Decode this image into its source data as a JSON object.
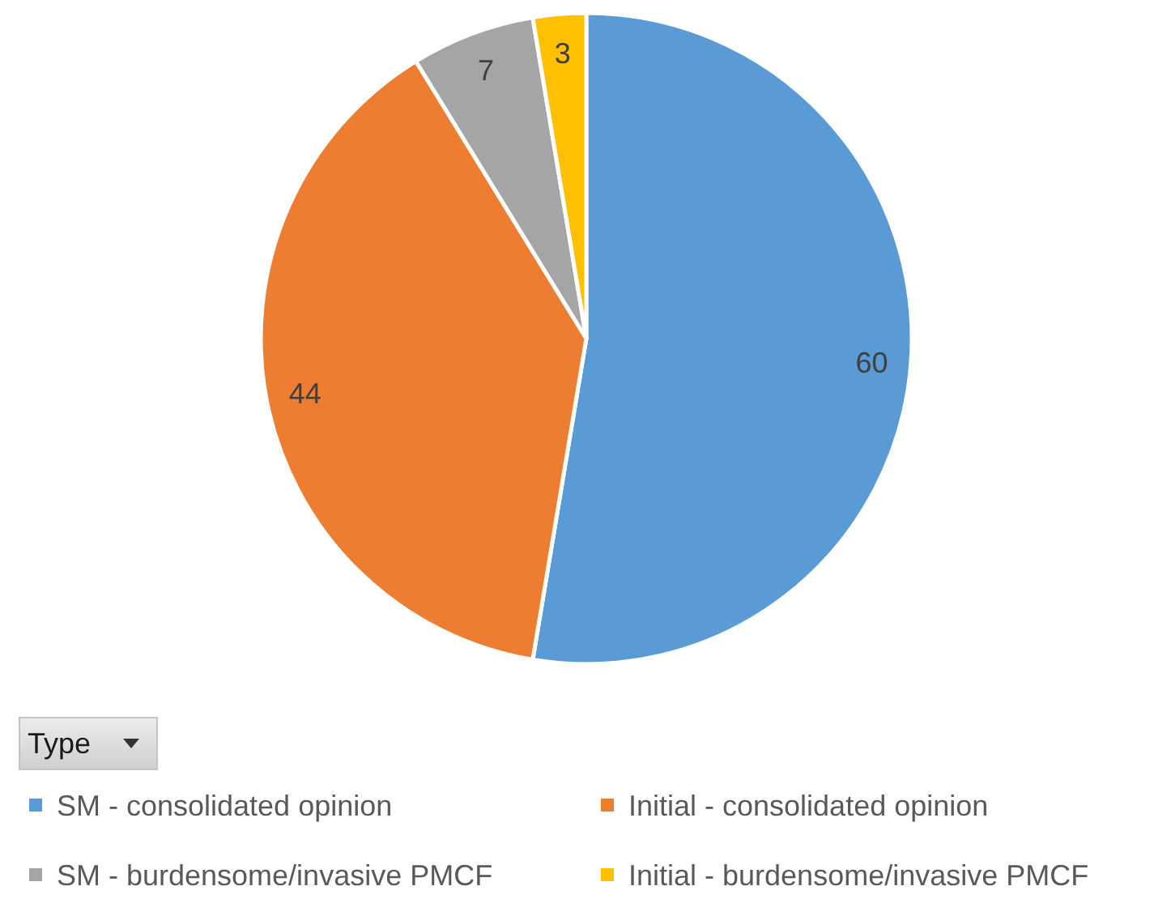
{
  "chart_data": {
    "type": "pie",
    "categories": [
      "SM - consolidated opinion",
      "Initial - consolidated opinion",
      "SM - burdensome/invasive PMCF",
      "Initial - burdensome/invasive PMCF"
    ],
    "values": [
      60,
      44,
      7,
      3
    ],
    "colors": [
      "#5b9bd5",
      "#ed7d31",
      "#a5a5a5",
      "#ffc000"
    ],
    "data_labels": true,
    "legend_title": "Type",
    "legend": "bottom"
  }
}
